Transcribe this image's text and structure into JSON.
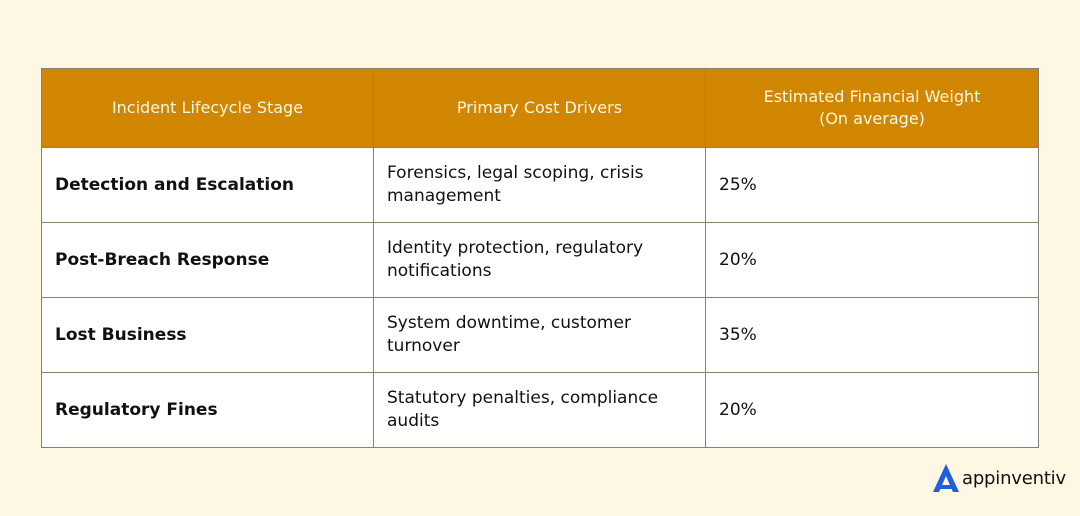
{
  "table": {
    "headers": [
      {
        "line1": "Incident Lifecycle Stage",
        "line2": ""
      },
      {
        "line1": "Primary Cost Drivers",
        "line2": ""
      },
      {
        "line1": "Estimated Financial Weight",
        "line2": "(On average)"
      }
    ],
    "rows": [
      {
        "stage": "Detection and Escalation",
        "drivers": "Forensics, legal scoping, crisis management",
        "weight": "25%"
      },
      {
        "stage": "Post-Breach Response",
        "drivers": "Identity protection, regulatory notifications",
        "weight": "20%"
      },
      {
        "stage": "Lost Business",
        "drivers": "System downtime, customer turnover",
        "weight": "35%"
      },
      {
        "stage": "Regulatory Fines",
        "drivers": "Statutory penalties, compliance audits",
        "weight": "20%"
      }
    ]
  },
  "brand": {
    "name": "appinventiv",
    "logo_icon": "appinventiv-a-logo-icon",
    "logo_color": "#1d5fe0"
  }
}
